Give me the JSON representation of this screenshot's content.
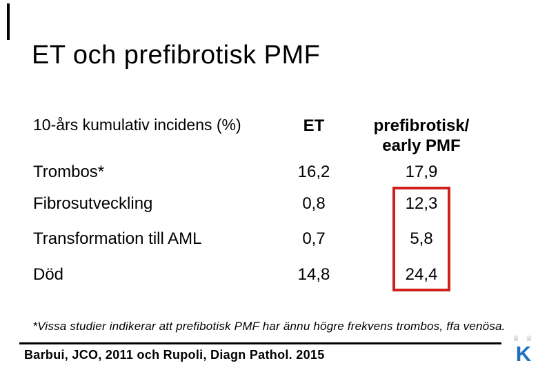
{
  "slide": {
    "title": "ET och prefibrotisk PMF",
    "table": {
      "row_header": "10-års kumulativ incidens (%)",
      "col_headers": {
        "et": "ET",
        "pmf_line1": "prefibrotisk/",
        "pmf_line2": "early PMF"
      },
      "rows": [
        {
          "label": "Trombos*",
          "et": "16,2",
          "pmf": "17,9"
        },
        {
          "label": "Fibrosutveckling",
          "et": "0,8",
          "pmf": "12,3"
        },
        {
          "label": "Transformation till AML",
          "et": "0,7",
          "pmf": "5,8"
        },
        {
          "label": "Död",
          "et": "14,8",
          "pmf": "24,4"
        }
      ],
      "highlight_color": "#d0201a"
    },
    "footnote": "*Vissa studier indikerar att prefibotisk PMF har ännu högre frekvens trombos, ffa venösa.",
    "citation": "Barbui, JCO, 2011 och Rupoli, Diagn Pathol. 2015",
    "logo": {
      "crown_glyphs": "♕ ♕",
      "letter": "K",
      "letter_color": "#1e6fc3"
    }
  }
}
